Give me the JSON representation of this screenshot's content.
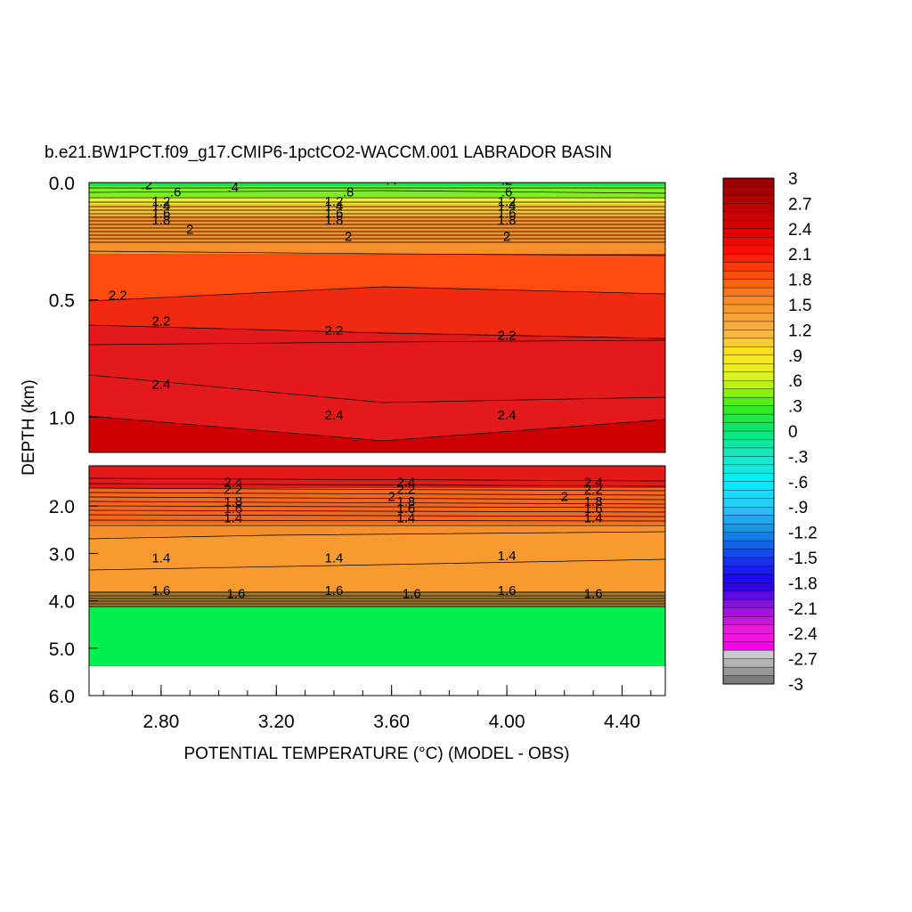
{
  "chart_data": {
    "type": "heatmap",
    "title": "b.e21.BW1PCT.f09_g17.CMIP6-1pctCO2-WACCM.001 LABRADOR BASIN",
    "xlabel": "POTENTIAL TEMPERATURE (°C) (MODEL - OBS)",
    "ylabel": "DEPTH (km)",
    "xlim": [
      2.55,
      4.55
    ],
    "x_ticks": [
      "2.80",
      "3.20",
      "3.60",
      "4.00",
      "4.40"
    ],
    "x_tick_values": [
      2.8,
      3.2,
      3.6,
      4.0,
      4.4
    ],
    "upper_panel": {
      "ylim": [
        0.0,
        1.15
      ],
      "y_ticks": [
        "0.0",
        "0.5",
        "1.0"
      ],
      "y_tick_values": [
        0.0,
        0.5,
        1.0
      ]
    },
    "lower_panel": {
      "ylim": [
        1.15,
        6.0
      ],
      "y_ticks": [
        "2.0",
        "3.0",
        "4.0",
        "5.0",
        "6.0"
      ],
      "y_tick_values": [
        2.0,
        3.0,
        4.0,
        5.0,
        6.0
      ]
    },
    "colorbar": {
      "min": -3.0,
      "max": 3.0,
      "labels": [
        "3",
        "2.7",
        "2.4",
        "2.1",
        "1.8",
        "1.5",
        "1.2",
        ".9",
        ".6",
        ".3",
        "0",
        "-.3",
        "-.6",
        "-.9",
        "-1.2",
        "-1.5",
        "-1.8",
        "-2.1",
        "-2.4",
        "-2.7",
        "-3"
      ],
      "label_values": [
        3.0,
        2.7,
        2.4,
        2.1,
        1.8,
        1.5,
        1.2,
        0.9,
        0.6,
        0.3,
        0.0,
        -0.3,
        -0.6,
        -0.9,
        -1.2,
        -1.5,
        -1.8,
        -2.1,
        -2.4,
        -2.7,
        -3.0
      ]
    },
    "contour_labels": [
      {
        "text": ".2",
        "x": 2.75,
        "depth": 0.01
      },
      {
        "text": ".4",
        "x": 3.05,
        "depth": 0.02
      },
      {
        "text": ".4",
        "x": 3.6,
        "depth": -0.01
      },
      {
        "text": ".2",
        "x": 4.0,
        "depth": -0.01
      },
      {
        "text": ".6",
        "x": 2.85,
        "depth": 0.04
      },
      {
        "text": ".8",
        "x": 3.45,
        "depth": 0.04
      },
      {
        "text": ".6",
        "x": 4.0,
        "depth": 0.04
      },
      {
        "text": "1.2",
        "x": 2.8,
        "depth": 0.08
      },
      {
        "text": "1.4",
        "x": 2.8,
        "depth": 0.1
      },
      {
        "text": "1.6",
        "x": 2.8,
        "depth": 0.13
      },
      {
        "text": "1.8",
        "x": 2.8,
        "depth": 0.16
      },
      {
        "text": "1.2",
        "x": 3.4,
        "depth": 0.08
      },
      {
        "text": "1.4",
        "x": 3.4,
        "depth": 0.1
      },
      {
        "text": "1.6",
        "x": 3.4,
        "depth": 0.13
      },
      {
        "text": "1.8",
        "x": 3.4,
        "depth": 0.16
      },
      {
        "text": "1.2",
        "x": 4.0,
        "depth": 0.08
      },
      {
        "text": "1.4",
        "x": 4.0,
        "depth": 0.1
      },
      {
        "text": "1.6",
        "x": 4.0,
        "depth": 0.13
      },
      {
        "text": "1.8",
        "x": 4.0,
        "depth": 0.16
      },
      {
        "text": "2",
        "x": 2.9,
        "depth": 0.2
      },
      {
        "text": "2",
        "x": 3.45,
        "depth": 0.23
      },
      {
        "text": "2",
        "x": 4.0,
        "depth": 0.23
      },
      {
        "text": "2.2",
        "x": 2.65,
        "depth": 0.48
      },
      {
        "text": "2.2",
        "x": 2.8,
        "depth": 0.59
      },
      {
        "text": "2.2",
        "x": 3.4,
        "depth": 0.63
      },
      {
        "text": "2.2",
        "x": 4.0,
        "depth": 0.65
      },
      {
        "text": "2.4",
        "x": 2.8,
        "depth": 0.86
      },
      {
        "text": "2.4",
        "x": 3.4,
        "depth": 0.99
      },
      {
        "text": "2.4",
        "x": 4.0,
        "depth": 0.99
      },
      {
        "text": "2.4",
        "x": 3.05,
        "depth": 1.5
      },
      {
        "text": "2.2",
        "x": 3.05,
        "depth": 1.65
      },
      {
        "text": "1.8",
        "x": 3.05,
        "depth": 1.9
      },
      {
        "text": "1.6",
        "x": 3.05,
        "depth": 2.05
      },
      {
        "text": "1.4",
        "x": 3.05,
        "depth": 2.25
      },
      {
        "text": "2.4",
        "x": 3.65,
        "depth": 1.5
      },
      {
        "text": "2",
        "x": 3.6,
        "depth": 1.8
      },
      {
        "text": "2.2",
        "x": 3.65,
        "depth": 1.65
      },
      {
        "text": "1.8",
        "x": 3.65,
        "depth": 1.9
      },
      {
        "text": "1.6",
        "x": 3.65,
        "depth": 2.05
      },
      {
        "text": "1.4",
        "x": 3.65,
        "depth": 2.25
      },
      {
        "text": "2",
        "x": 4.2,
        "depth": 1.8
      },
      {
        "text": "2.4",
        "x": 4.3,
        "depth": 1.5
      },
      {
        "text": "2.2",
        "x": 4.3,
        "depth": 1.65
      },
      {
        "text": "1.8",
        "x": 4.3,
        "depth": 1.9
      },
      {
        "text": "1.6",
        "x": 4.3,
        "depth": 2.05
      },
      {
        "text": "1.4",
        "x": 4.3,
        "depth": 2.25
      },
      {
        "text": "1.4",
        "x": 2.8,
        "depth": 3.1
      },
      {
        "text": "1.4",
        "x": 3.4,
        "depth": 3.1
      },
      {
        "text": "1.4",
        "x": 4.0,
        "depth": 3.05
      },
      {
        "text": "1.6",
        "x": 2.8,
        "depth": 3.78
      },
      {
        "text": "1.6",
        "x": 3.4,
        "depth": 3.78
      },
      {
        "text": "1.6",
        "x": 4.0,
        "depth": 3.78
      },
      {
        "text": "1.6",
        "x": 3.06,
        "depth": 3.85
      },
      {
        "text": "1.6",
        "x": 3.67,
        "depth": 3.85
      },
      {
        "text": "1.6",
        "x": 4.3,
        "depth": 3.85
      }
    ]
  }
}
